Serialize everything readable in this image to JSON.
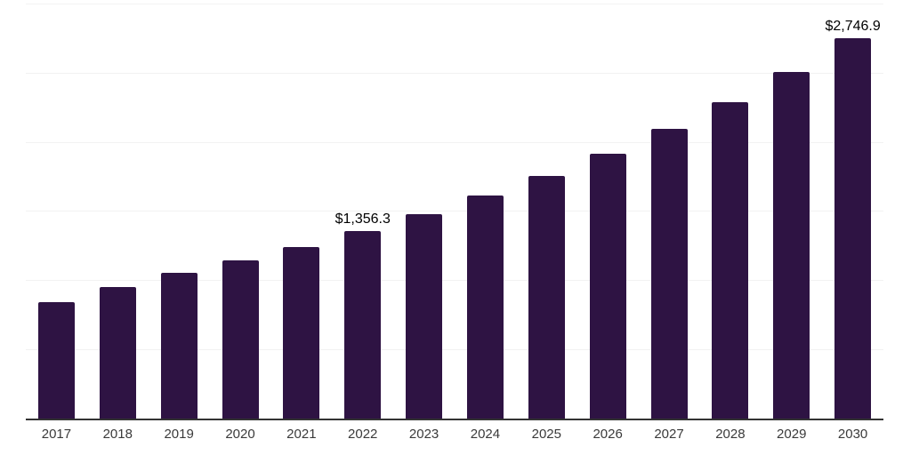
{
  "chart_data": {
    "type": "bar",
    "title": "",
    "xlabel": "",
    "ylabel": "",
    "legend": "none",
    "grid": "horizontal",
    "ylim": [
      0,
      3000
    ],
    "gridline_interval": 500,
    "categories": [
      "2017",
      "2018",
      "2019",
      "2020",
      "2021",
      "2022",
      "2023",
      "2024",
      "2025",
      "2026",
      "2027",
      "2028",
      "2029",
      "2030"
    ],
    "values": [
      843,
      950,
      1052,
      1141,
      1242,
      1356.3,
      1478,
      1610,
      1757,
      1915,
      2092,
      2290,
      2505,
      2746.9
    ],
    "point_labels": [
      "",
      "",
      "",
      "",
      "",
      "$1,356.3",
      "",
      "",
      "",
      "",
      "",
      "",
      "",
      "$2,746.9"
    ],
    "colors": {
      "bar": "#2E1343",
      "gridline": "#f2f2f2",
      "axis_line": "#333333",
      "data_label": "#000000",
      "tick_label": "#3a3a3a",
      "background": "#ffffff"
    }
  }
}
